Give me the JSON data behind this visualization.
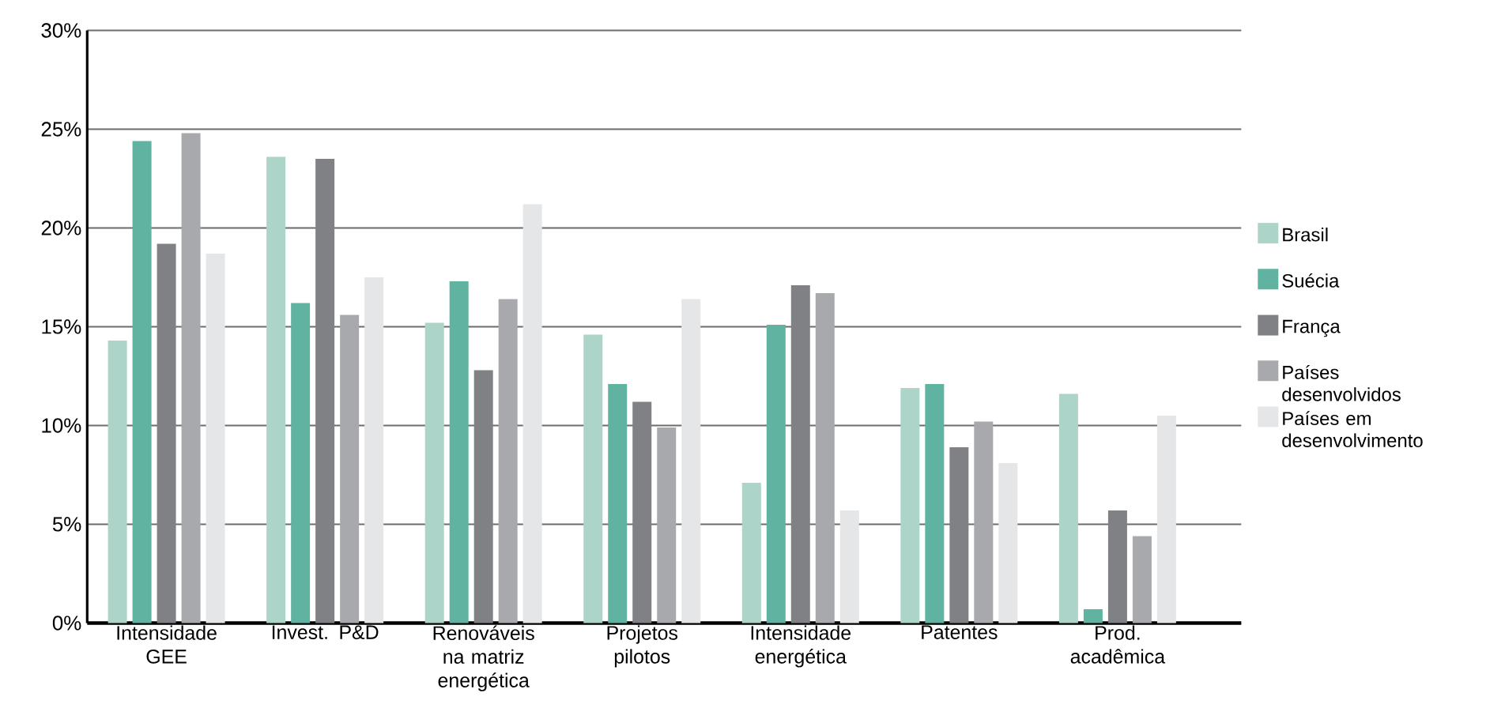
{
  "chart_data": {
    "type": "bar",
    "categories": [
      "Intensidade GEE",
      "Invest. P&D",
      "Renováveis na matriz energética",
      "Projetos pilotos",
      "Intensidade energética",
      "Patentes",
      "Prod. acadêmica"
    ],
    "series": [
      {
        "name": "Brasil",
        "color": "#acd4c8",
        "values": [
          14.3,
          23.6,
          15.2,
          14.6,
          7.1,
          11.9,
          11.6
        ]
      },
      {
        "name": "Suécia",
        "color": "#5fb3a0",
        "values": [
          24.4,
          16.2,
          17.3,
          12.1,
          15.1,
          12.1,
          0.7
        ]
      },
      {
        "name": "França",
        "color": "#808185",
        "values": [
          19.2,
          23.5,
          12.8,
          11.2,
          17.1,
          8.9,
          5.7
        ]
      },
      {
        "name": "Países desenvolvidos",
        "color": "#a8a9ad",
        "values": [
          24.8,
          15.6,
          16.4,
          9.9,
          16.7,
          10.2,
          4.4
        ]
      },
      {
        "name": "Países em desenvolvimento",
        "color": "#e5e6e8",
        "values": [
          18.7,
          17.5,
          21.2,
          16.4,
          5.7,
          8.1,
          10.5
        ]
      }
    ],
    "ylim": [
      0,
      30
    ],
    "yticks": [
      {
        "value": 0,
        "label": "0%"
      },
      {
        "value": 5,
        "label": "5%"
      },
      {
        "value": 10,
        "label": "10%"
      },
      {
        "value": 15,
        "label": "15%"
      },
      {
        "value": 20,
        "label": "20%"
      },
      {
        "value": 25,
        "label": "25%"
      },
      {
        "value": 30,
        "label": "30%"
      }
    ],
    "grid": "y",
    "legend": "right"
  }
}
